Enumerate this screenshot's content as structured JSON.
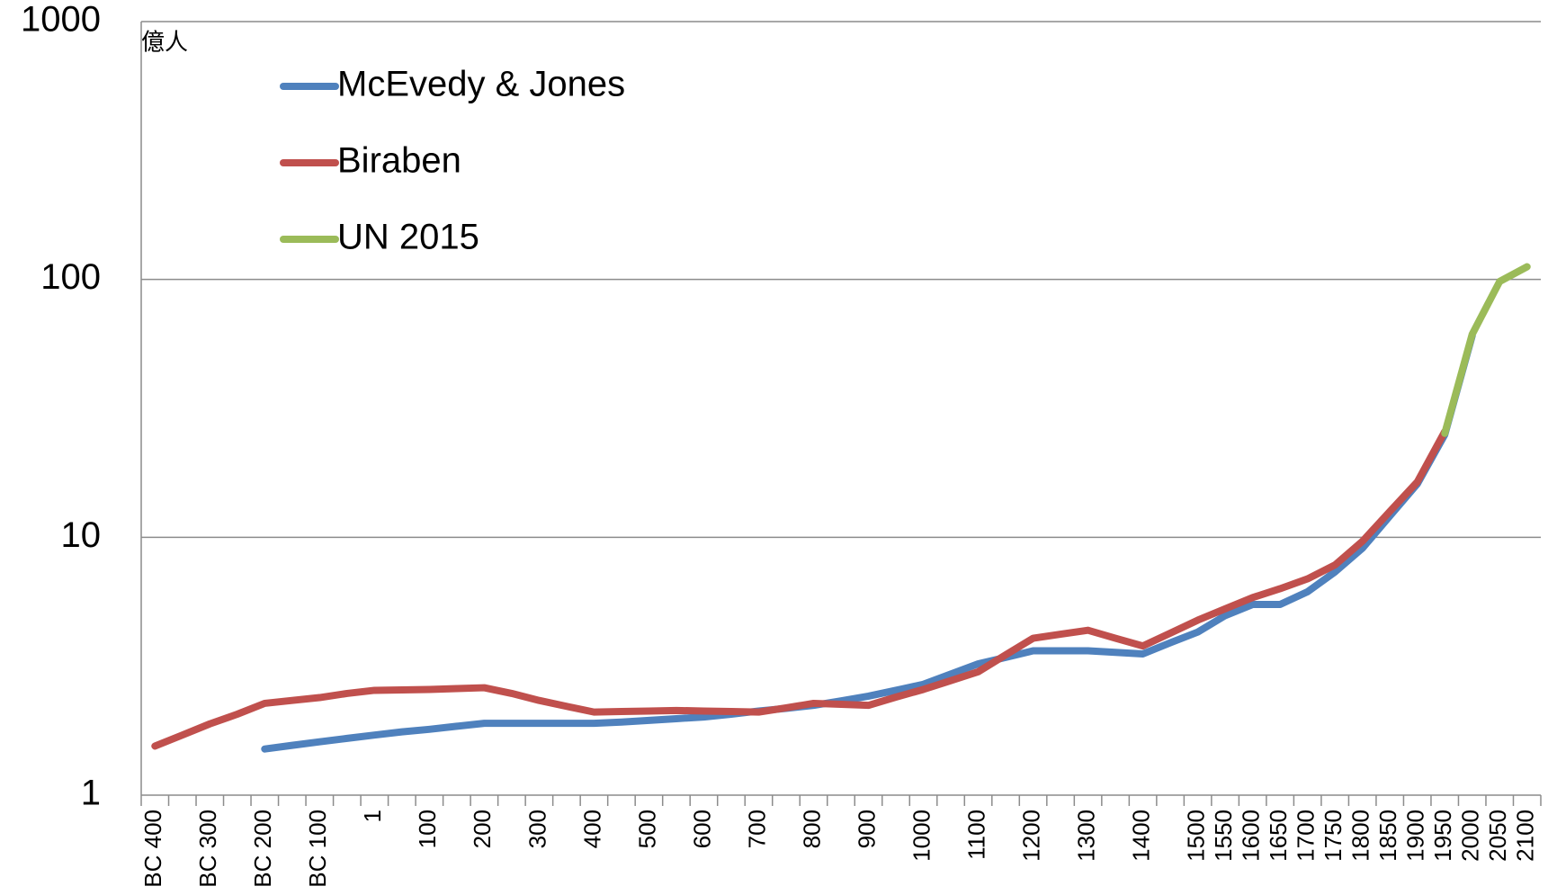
{
  "chart_data": {
    "type": "line",
    "y_label": "億人",
    "categories": [
      "BC 400",
      null,
      "BC 300",
      null,
      "BC 200",
      null,
      "BC 100",
      null,
      "1",
      null,
      "100",
      null,
      "200",
      null,
      "300",
      null,
      "400",
      null,
      "500",
      null,
      "600",
      null,
      "700",
      null,
      "800",
      null,
      "900",
      null,
      "1000",
      null,
      "1100",
      null,
      "1200",
      null,
      "1300",
      null,
      "1400",
      null,
      "1500",
      "1550",
      "1600",
      "1650",
      "1700",
      "1750",
      "1800",
      "1850",
      "1900",
      "1950",
      "2000",
      "2050",
      "2100"
    ],
    "series": [
      {
        "name": "McEvedy & Jones",
        "color": "#4f81bd",
        "values": [
          null,
          null,
          null,
          null,
          1.51,
          1.56,
          1.61,
          1.66,
          1.71,
          1.76,
          1.8,
          1.85,
          1.9,
          1.9,
          1.9,
          1.9,
          1.9,
          1.92,
          1.95,
          1.98,
          2.01,
          2.06,
          2.12,
          2.17,
          2.23,
          2.32,
          2.42,
          2.55,
          2.69,
          2.95,
          3.23,
          3.42,
          3.63,
          3.63,
          3.63,
          3.58,
          3.53,
          3.9,
          4.29,
          4.97,
          5.49,
          5.49,
          6.15,
          7.34,
          9.07,
          12.1,
          16.1,
          25.0,
          60.5,
          null,
          null
        ]
      },
      {
        "name": "Biraben",
        "color": "#c0504d",
        "values": [
          1.55,
          1.71,
          1.89,
          2.06,
          2.27,
          2.33,
          2.39,
          2.48,
          2.55,
          2.56,
          2.57,
          2.59,
          2.61,
          2.48,
          2.33,
          2.21,
          2.1,
          2.11,
          2.12,
          2.13,
          2.12,
          2.11,
          2.1,
          2.18,
          2.27,
          2.25,
          2.23,
          2.4,
          2.57,
          2.78,
          3.01,
          3.5,
          4.06,
          4.21,
          4.36,
          4.06,
          3.79,
          4.25,
          4.77,
          5.28,
          5.84,
          6.32,
          6.9,
          7.81,
          9.65,
          12.6,
          16.4,
          25.7,
          null,
          null,
          null
        ]
      },
      {
        "name": "UN 2015",
        "color": "#9bbb59",
        "values": [
          null,
          null,
          null,
          null,
          null,
          null,
          null,
          null,
          null,
          null,
          null,
          null,
          null,
          null,
          null,
          null,
          null,
          null,
          null,
          null,
          null,
          null,
          null,
          null,
          null,
          null,
          null,
          null,
          null,
          null,
          null,
          null,
          null,
          null,
          null,
          null,
          null,
          null,
          null,
          null,
          null,
          null,
          null,
          null,
          null,
          null,
          null,
          25.3,
          61.3,
          98.2,
          112
        ]
      }
    ],
    "ylim": [
      1,
      1000
    ],
    "yticks": [
      1,
      10,
      100,
      1000
    ],
    "log_scale": true,
    "grid": true,
    "legend_position": "upper left"
  }
}
